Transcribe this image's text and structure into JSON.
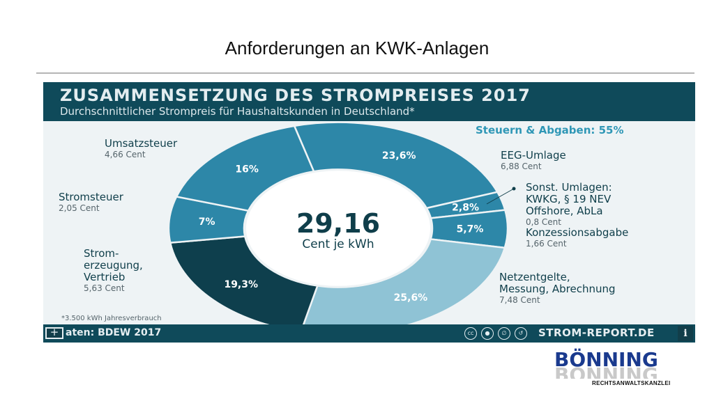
{
  "slide": {
    "title": "Anforderungen an KWK-Anlagen"
  },
  "infographic": {
    "title": "ZUSAMMENSETZUNG DES STROMPREISES 2017",
    "subtitle": "Durchschnittlicher Strompreis für Haushaltskunden in Deutschland*",
    "taxes_label": "Steuern & Abgaben: 55%",
    "center_value": "29,16",
    "center_unit": "Cent je kWh",
    "footnote": "*3.500 kWh Jahresverbrauch",
    "source": "aten: BDEW 2017",
    "brand": "STROM-REPORT.DE",
    "info_icon_text": "i",
    "cc_icon_text": "cc",
    "labels": {
      "umsatzsteuer": {
        "name": "Umsatzsteuer",
        "value": "4,66 Cent"
      },
      "stromsteuer": {
        "name": "Stromsteuer",
        "value": "2,05 Cent"
      },
      "stromerzeugung": {
        "name_lines": [
          "Strom-",
          "erzeugung,",
          "Vertrieb"
        ],
        "value": "5,63 Cent"
      },
      "eeg": {
        "name": "EEG-Umlage",
        "value": "6,88 Cent"
      },
      "sonst": {
        "name_lines": [
          "Sonst. Umlagen:",
          "KWKG, § 19 NEV",
          "Offshore, AbLa"
        ],
        "value": "0,8 Cent"
      },
      "konzession": {
        "name": "Konzessionsabgabe",
        "value": "1,66 Cent"
      },
      "netz": {
        "name_lines": [
          "Netzentgelte,",
          "Messung, Abrechnung"
        ],
        "value": "7,48 Cent"
      }
    }
  },
  "chart_data": {
    "type": "pie",
    "title": "ZUSAMMENSETZUNG DES STROMPREISES 2017",
    "subtitle": "Durchschnittlicher Strompreis für Haushaltskunden in Deutschland*",
    "total_label": "29,16 Cent je kWh",
    "slices": [
      {
        "label": "EEG-Umlage",
        "percent": 23.6,
        "percent_label": "23,6%",
        "value_label": "6,88 Cent",
        "color": "#2d87a8"
      },
      {
        "label": "Sonst. Umlagen: KWKG, § 19 NEV Offshore, AbLa",
        "percent": 2.8,
        "percent_label": "2,8%",
        "value_label": "0,8 Cent",
        "color": "#2d87a8"
      },
      {
        "label": "Konzessionsabgabe",
        "percent": 5.7,
        "percent_label": "5,7%",
        "value_label": "1,66 Cent",
        "color": "#2d87a8"
      },
      {
        "label": "Netzentgelte, Messung, Abrechnung",
        "percent": 25.6,
        "percent_label": "25,6%",
        "value_label": "7,48 Cent",
        "color": "#8fc3d5"
      },
      {
        "label": "Strom-erzeugung, Vertrieb",
        "percent": 19.3,
        "percent_label": "19,3%",
        "value_label": "5,63 Cent",
        "color": "#0e3f4d"
      },
      {
        "label": "Stromsteuer",
        "percent": 7,
        "percent_label": "7%",
        "value_label": "2,05 Cent",
        "color": "#2d87a8"
      },
      {
        "label": "Umsatzsteuer",
        "percent": 16,
        "percent_label": "16%",
        "value_label": "4,66 Cent",
        "color": "#2d87a8"
      }
    ],
    "annotation": "Steuern & Abgaben: 55%",
    "legend": "none"
  },
  "logo": {
    "name": "BÖNNING",
    "subtitle": "RECHTSANWALTSKANZLEI"
  },
  "colors": {
    "header": "#0f4a5a",
    "accent": "#2f97b6",
    "logo_blue": "#1a3a8e"
  }
}
